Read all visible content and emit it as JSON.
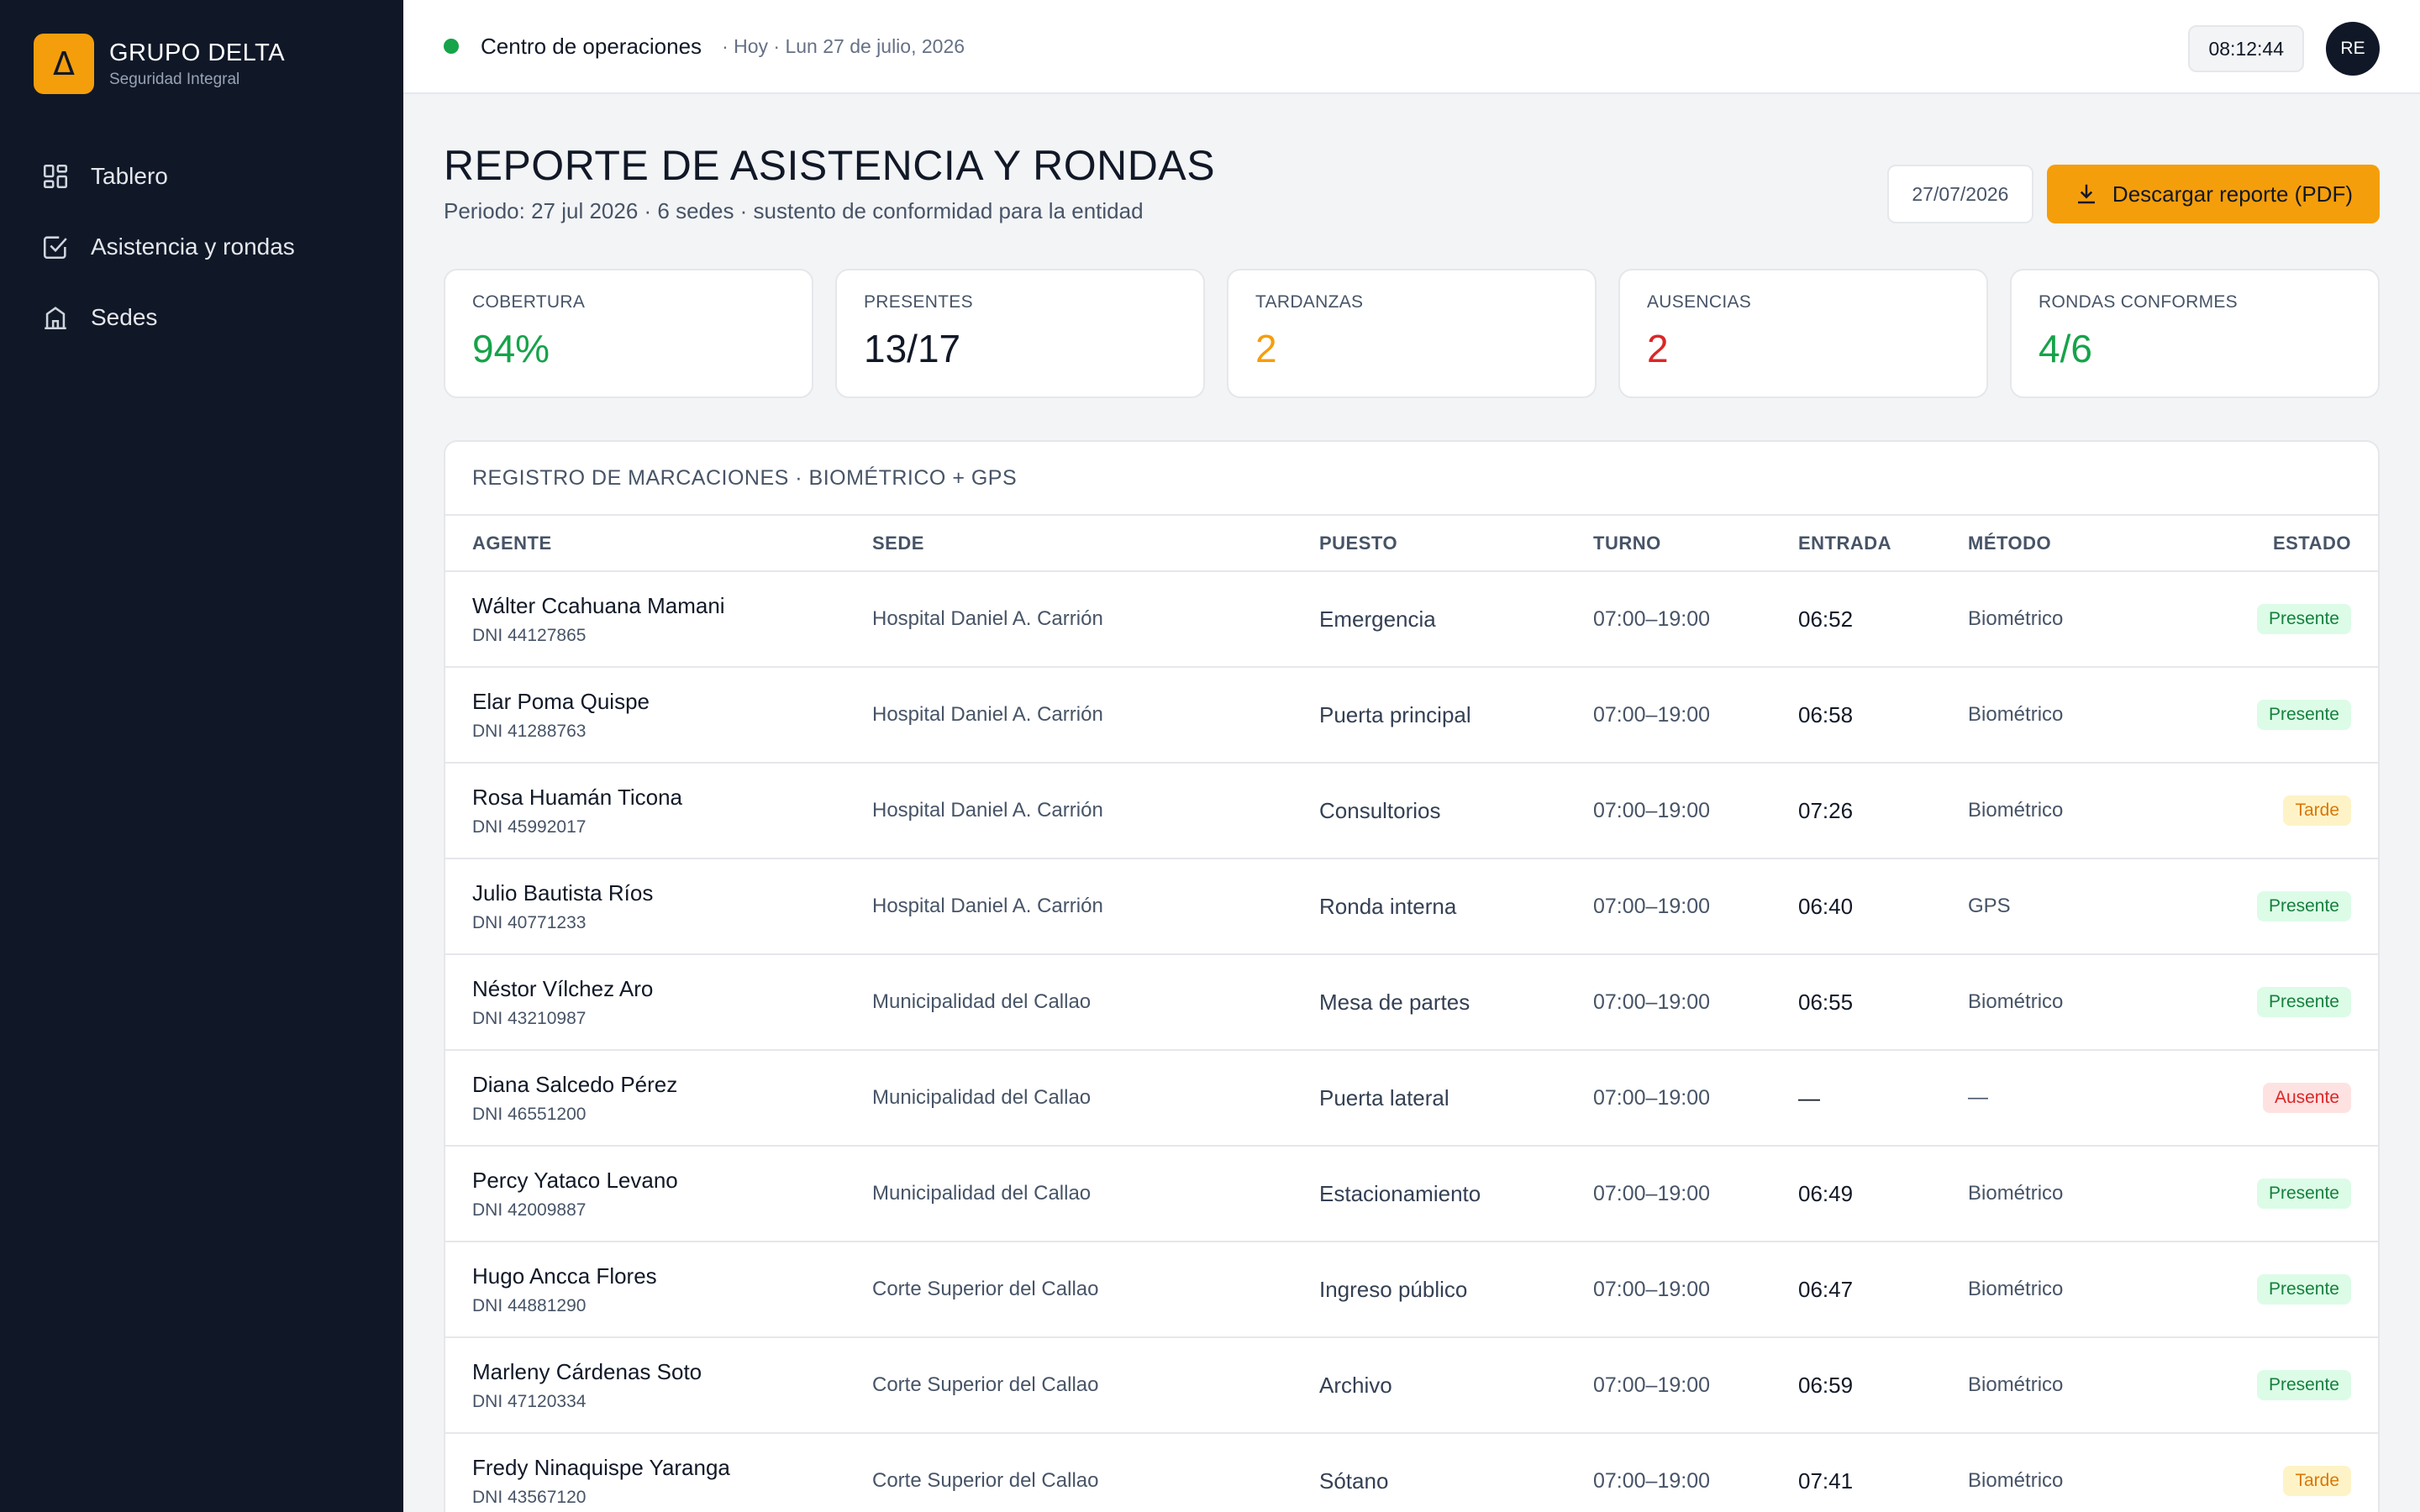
{
  "brand": {
    "logo_glyph": "Δ",
    "name": "GRUPO DELTA",
    "subtitle": "Seguridad Integral"
  },
  "sidebar": {
    "items": [
      {
        "label": "Tablero",
        "icon": "grid-icon"
      },
      {
        "label": "Asistencia y rondas",
        "icon": "checkbox-icon"
      },
      {
        "label": "Sedes",
        "icon": "building-icon"
      }
    ]
  },
  "topbar": {
    "title": "Centro de operaciones",
    "date": "· Hoy · Lun 27 de julio, 2026",
    "clock": "08:12:44",
    "avatar": "RE"
  },
  "page": {
    "title": "REPORTE DE ASISTENCIA Y RONDAS",
    "subtitle": "Periodo: 27 jul 2026 · 6 sedes · sustento de conformidad para la entidad",
    "date_value": "27/07/2026",
    "download_label": "Descargar reporte (PDF)"
  },
  "kpis": [
    {
      "label": "COBERTURA",
      "value": "94%",
      "color": "#16a34a"
    },
    {
      "label": "PRESENTES",
      "value": "13/17",
      "color": "#111827"
    },
    {
      "label": "TARDANZAS",
      "value": "2",
      "color": "#f59e0b"
    },
    {
      "label": "AUSENCIAS",
      "value": "2",
      "color": "#dc2626"
    },
    {
      "label": "RONDAS CONFORMES",
      "value": "4/6",
      "color": "#16a34a"
    }
  ],
  "registry": {
    "title": "REGISTRO DE MARCACIONES · BIOMÉTRICO + GPS",
    "columns": {
      "agent": "AGENTE",
      "sede": "SEDE",
      "puesto": "PUESTO",
      "turno": "TURNO",
      "entrada": "ENTRADA",
      "metodo": "MÉTODO",
      "estado": "ESTADO"
    },
    "rows": [
      {
        "name": "Wálter Ccahuana Mamani",
        "dni": "DNI 44127865",
        "sede": "Hospital Daniel A. Carrión",
        "puesto": "Emergencia",
        "turno": "07:00–19:00",
        "entrada": "06:52",
        "metodo": "Biométrico",
        "estado": "Presente",
        "status": "ok"
      },
      {
        "name": "Elar Poma Quispe",
        "dni": "DNI 41288763",
        "sede": "Hospital Daniel A. Carrión",
        "puesto": "Puerta principal",
        "turno": "07:00–19:00",
        "entrada": "06:58",
        "metodo": "Biométrico",
        "estado": "Presente",
        "status": "ok"
      },
      {
        "name": "Rosa Huamán Ticona",
        "dni": "DNI 45992017",
        "sede": "Hospital Daniel A. Carrión",
        "puesto": "Consultorios",
        "turno": "07:00–19:00",
        "entrada": "07:26",
        "metodo": "Biométrico",
        "estado": "Tarde",
        "status": "late"
      },
      {
        "name": "Julio Bautista Ríos",
        "dni": "DNI 40771233",
        "sede": "Hospital Daniel A. Carrión",
        "puesto": "Ronda interna",
        "turno": "07:00–19:00",
        "entrada": "06:40",
        "metodo": "GPS",
        "estado": "Presente",
        "status": "ok"
      },
      {
        "name": "Néstor Vílchez Aro",
        "dni": "DNI 43210987",
        "sede": "Municipalidad del Callao",
        "puesto": "Mesa de partes",
        "turno": "07:00–19:00",
        "entrada": "06:55",
        "metodo": "Biométrico",
        "estado": "Presente",
        "status": "ok"
      },
      {
        "name": "Diana Salcedo Pérez",
        "dni": "DNI 46551200",
        "sede": "Municipalidad del Callao",
        "puesto": "Puerta lateral",
        "turno": "07:00–19:00",
        "entrada": "—",
        "metodo": "—",
        "estado": "Ausente",
        "status": "abs"
      },
      {
        "name": "Percy Yataco Levano",
        "dni": "DNI 42009887",
        "sede": "Municipalidad del Callao",
        "puesto": "Estacionamiento",
        "turno": "07:00–19:00",
        "entrada": "06:49",
        "metodo": "Biométrico",
        "estado": "Presente",
        "status": "ok"
      },
      {
        "name": "Hugo Ancca Flores",
        "dni": "DNI 44881290",
        "sede": "Corte Superior del Callao",
        "puesto": "Ingreso público",
        "turno": "07:00–19:00",
        "entrada": "06:47",
        "metodo": "Biométrico",
        "estado": "Presente",
        "status": "ok"
      },
      {
        "name": "Marleny Cárdenas Soto",
        "dni": "DNI 47120334",
        "sede": "Corte Superior del Callao",
        "puesto": "Archivo",
        "turno": "07:00–19:00",
        "entrada": "06:59",
        "metodo": "Biométrico",
        "estado": "Presente",
        "status": "ok"
      },
      {
        "name": "Fredy Ninaquispe Yaranga",
        "dni": "DNI 43567120",
        "sede": "Corte Superior del Callao",
        "puesto": "Sótano",
        "turno": "07:00–19:00",
        "entrada": "07:41",
        "metodo": "Biométrico",
        "estado": "Tarde",
        "status": "late"
      }
    ]
  }
}
